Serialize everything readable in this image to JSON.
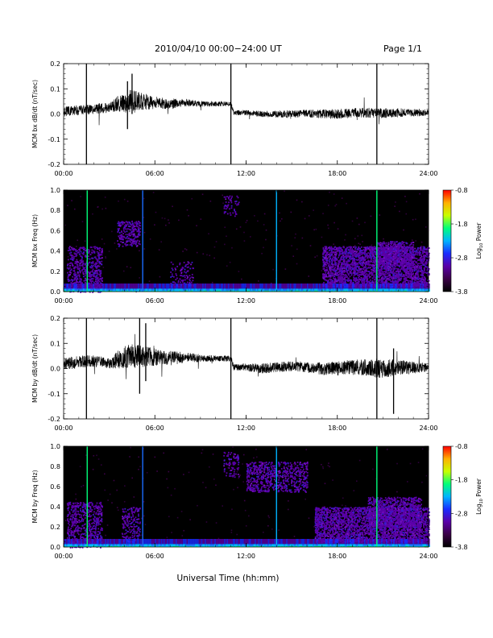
{
  "header": {
    "title": "2010/04/10   00:00−24:00  UT",
    "page": "Page 1/1"
  },
  "xaxis": {
    "label": "Universal Time (hh:mm)",
    "ticks": [
      "00:00",
      "06:00",
      "12:00",
      "18:00",
      "24:00"
    ],
    "range_hours": [
      0,
      24
    ]
  },
  "colorbar": {
    "label": "Log10 Power",
    "label_main": "Log",
    "label_sub": "10",
    "label_tail": " Power",
    "ticks": [
      "-0.8",
      "-1.8",
      "-2.8",
      "-3.8"
    ],
    "range": [
      -3.8,
      -0.8
    ],
    "colormap": [
      "#000000",
      "#3a0046",
      "#5a00a8",
      "#1a2cff",
      "#00b4ff",
      "#00ff7a",
      "#c8ff00",
      "#ffb000",
      "#ff0000"
    ]
  },
  "chart_data": [
    {
      "type": "line",
      "panel": "bx-dbdt",
      "ylabel": "MCM bx dB/dt (nT/sec)",
      "ylim": [
        -0.2,
        0.2
      ],
      "yticks": [
        "0.2",
        "0.1",
        "0.0",
        "-0.1",
        "-0.2"
      ],
      "xlim": [
        0,
        24
      ],
      "series": [
        {
          "noise_base": 0.012
        }
      ],
      "envelope": {
        "x": [
          0,
          1,
          2,
          3,
          3.5,
          4,
          4.5,
          5,
          6,
          7,
          8,
          9,
          10,
          11,
          11.2,
          12,
          13,
          14,
          15,
          16,
          17,
          18,
          19,
          20,
          21,
          22,
          23,
          24
        ],
        "mean": [
          0.01,
          0.015,
          0.02,
          0.025,
          0.04,
          0.045,
          0.05,
          0.05,
          0.045,
          0.04,
          0.045,
          0.04,
          0.04,
          0.04,
          0.005,
          0.005,
          0.0,
          0.0,
          0.0,
          0.002,
          0.0,
          0.0,
          0.005,
          0.005,
          0.003,
          0.005,
          0.005,
          0.003
        ],
        "amp": [
          0.02,
          0.02,
          0.02,
          0.02,
          0.03,
          0.04,
          0.05,
          0.035,
          0.025,
          0.02,
          0.015,
          0.012,
          0.01,
          0.01,
          0.01,
          0.01,
          0.012,
          0.014,
          0.015,
          0.015,
          0.018,
          0.02,
          0.02,
          0.02,
          0.02,
          0.018,
          0.015,
          0.012
        ]
      },
      "spikes": [
        {
          "t": 1.5,
          "min": -0.2,
          "max": 0.2
        },
        {
          "t": 4.5,
          "min": 0.0,
          "max": 0.16
        },
        {
          "t": 4.2,
          "min": -0.06,
          "max": 0.13
        },
        {
          "t": 11.0,
          "min": -0.2,
          "max": 0.2
        },
        {
          "t": 20.6,
          "min": -0.2,
          "max": 0.2
        }
      ]
    },
    {
      "type": "heatmap",
      "panel": "bx-freq",
      "ylabel": "MCM bx Freq (Hz)",
      "ylim": [
        0.0,
        1.0
      ],
      "yticks": [
        "1.0",
        "0.8",
        "0.6",
        "0.4",
        "0.2",
        "0.0"
      ],
      "xlim": [
        0,
        24
      ],
      "vlines": [
        {
          "t": 1.55,
          "color": "#00ff7a",
          "top": 1.0
        },
        {
          "t": 5.2,
          "color": "#1a6cff",
          "top": 1.0
        },
        {
          "t": 14.0,
          "color": "#00b4ff",
          "top": 1.0
        },
        {
          "t": 20.6,
          "color": "#00ff7a",
          "top": 1.0
        }
      ],
      "clusters": [
        {
          "t0": 0.2,
          "t1": 2.5,
          "f0": 0.0,
          "f1": 0.45,
          "density": 0.1
        },
        {
          "t0": 3.5,
          "t1": 5.0,
          "f0": 0.45,
          "f1": 0.7,
          "density": 0.12
        },
        {
          "t0": 7.0,
          "t1": 8.5,
          "f0": 0.05,
          "f1": 0.3,
          "density": 0.05
        },
        {
          "t0": 10.5,
          "t1": 11.5,
          "f0": 0.75,
          "f1": 0.95,
          "density": 0.05
        },
        {
          "t0": 17.0,
          "t1": 24.0,
          "f0": 0.05,
          "f1": 0.45,
          "density": 0.18
        },
        {
          "t0": 20.5,
          "t1": 23.0,
          "f0": 0.25,
          "f1": 0.5,
          "density": 0.15
        }
      ]
    },
    {
      "type": "line",
      "panel": "by-dbdt",
      "ylabel": "MCM by dB/dt (nT/sec)",
      "ylim": [
        -0.2,
        0.2
      ],
      "yticks": [
        "0.2",
        "0.1",
        "0.0",
        "-0.1",
        "-0.2"
      ],
      "xlim": [
        0,
        24
      ],
      "series": [
        {
          "noise_base": 0.015
        }
      ],
      "envelope": {
        "x": [
          0,
          1,
          2,
          3,
          3.5,
          4,
          4.5,
          5,
          6,
          7,
          8,
          9,
          10,
          11,
          11.2,
          12,
          13,
          14,
          15,
          16,
          17,
          18,
          19,
          20,
          21,
          22,
          23,
          24
        ],
        "mean": [
          0.02,
          0.025,
          0.03,
          0.02,
          0.035,
          0.045,
          0.05,
          0.05,
          0.045,
          0.04,
          0.045,
          0.04,
          0.04,
          0.04,
          0.005,
          0.005,
          0.0,
          0.005,
          0.01,
          0.005,
          0.0,
          0.0,
          0.005,
          0.005,
          0.0,
          0.005,
          0.005,
          0.003
        ],
        "amp": [
          0.025,
          0.025,
          0.025,
          0.02,
          0.035,
          0.045,
          0.05,
          0.045,
          0.035,
          0.03,
          0.02,
          0.015,
          0.012,
          0.012,
          0.012,
          0.015,
          0.02,
          0.02,
          0.02,
          0.02,
          0.025,
          0.03,
          0.03,
          0.035,
          0.04,
          0.03,
          0.025,
          0.015
        ]
      },
      "spikes": [
        {
          "t": 1.5,
          "min": -0.2,
          "max": 0.2
        },
        {
          "t": 5.0,
          "min": -0.1,
          "max": 0.2
        },
        {
          "t": 5.4,
          "min": -0.05,
          "max": 0.18
        },
        {
          "t": 11.0,
          "min": -0.2,
          "max": 0.2
        },
        {
          "t": 20.6,
          "min": -0.2,
          "max": 0.2
        },
        {
          "t": 21.7,
          "min": -0.18,
          "max": 0.08
        }
      ]
    },
    {
      "type": "heatmap",
      "panel": "by-freq",
      "ylabel": "MCM by Freq (Hz)",
      "ylim": [
        0.0,
        1.0
      ],
      "yticks": [
        "1.0",
        "0.8",
        "0.6",
        "0.4",
        "0.2",
        "0.0"
      ],
      "xlim": [
        0,
        24
      ],
      "vlines": [
        {
          "t": 1.55,
          "color": "#00ff7a",
          "top": 1.0
        },
        {
          "t": 5.2,
          "color": "#1a6cff",
          "top": 1.0
        },
        {
          "t": 14.0,
          "color": "#00b4ff",
          "top": 1.0
        },
        {
          "t": 20.6,
          "color": "#00ff7a",
          "top": 1.0
        }
      ],
      "clusters": [
        {
          "t0": 0.2,
          "t1": 2.5,
          "f0": 0.0,
          "f1": 0.45,
          "density": 0.1
        },
        {
          "t0": 3.8,
          "t1": 5.0,
          "f0": 0.05,
          "f1": 0.4,
          "density": 0.08
        },
        {
          "t0": 10.5,
          "t1": 11.5,
          "f0": 0.7,
          "f1": 0.95,
          "density": 0.06
        },
        {
          "t0": 12.0,
          "t1": 16.0,
          "f0": 0.55,
          "f1": 0.85,
          "density": 0.1
        },
        {
          "t0": 16.5,
          "t1": 24.0,
          "f0": 0.05,
          "f1": 0.4,
          "density": 0.18
        },
        {
          "t0": 20.0,
          "t1": 23.5,
          "f0": 0.2,
          "f1": 0.5,
          "density": 0.14
        }
      ]
    }
  ]
}
